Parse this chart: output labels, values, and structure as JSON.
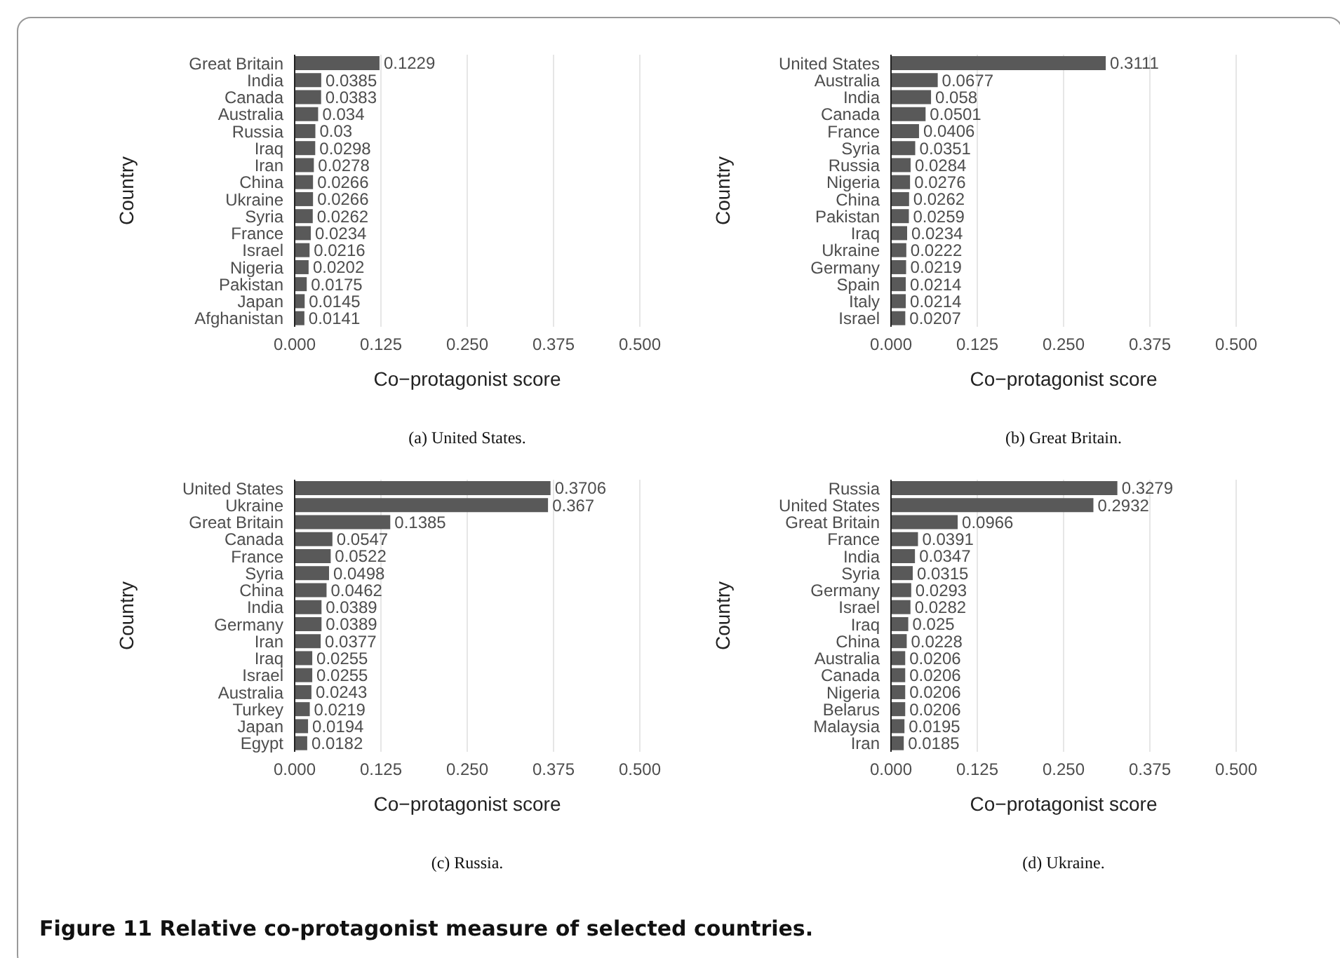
{
  "chart_data": [
    {
      "type": "bar",
      "orientation": "horizontal",
      "title": "(a) United States.",
      "xlabel": "Co−protagonist score",
      "ylabel": "Country",
      "categories": [
        "Great Britain",
        "India",
        "Canada",
        "Australia",
        "Russia",
        "Iraq",
        "Iran",
        "China",
        "Ukraine",
        "Syria",
        "France",
        "Israel",
        "Nigeria",
        "Pakistan",
        "Japan",
        "Afghanistan"
      ],
      "values": [
        0.1229,
        0.0385,
        0.0383,
        0.034,
        0.03,
        0.0298,
        0.0278,
        0.0266,
        0.0266,
        0.0262,
        0.0234,
        0.0216,
        0.0202,
        0.0175,
        0.0145,
        0.0141
      ],
      "color": "#595959",
      "xlim": [
        0,
        0.5
      ],
      "xticks": [
        {
          "value": 0,
          "label": "0.000"
        },
        {
          "value": 0.125,
          "label": "0.125"
        },
        {
          "value": 0.25,
          "label": "0.250"
        },
        {
          "value": 0.375,
          "label": "0.375"
        },
        {
          "value": 0.5,
          "label": "0.500"
        }
      ],
      "grid": "x",
      "data_labels": true
    },
    {
      "type": "bar",
      "orientation": "horizontal",
      "title": "(b) Great Britain.",
      "xlabel": "Co−protagonist score",
      "ylabel": "Country",
      "categories": [
        "United States",
        "Australia",
        "India",
        "Canada",
        "France",
        "Syria",
        "Russia",
        "Nigeria",
        "China",
        "Pakistan",
        "Iraq",
        "Ukraine",
        "Germany",
        "Spain",
        "Italy",
        "Israel"
      ],
      "values": [
        0.3111,
        0.0677,
        0.058,
        0.0501,
        0.0406,
        0.0351,
        0.0284,
        0.0276,
        0.0262,
        0.0259,
        0.0234,
        0.0222,
        0.0219,
        0.0214,
        0.0214,
        0.0207
      ],
      "color": "#595959",
      "xlim": [
        0,
        0.5
      ],
      "xticks": [
        {
          "value": 0,
          "label": "0.000"
        },
        {
          "value": 0.125,
          "label": "0.125"
        },
        {
          "value": 0.25,
          "label": "0.250"
        },
        {
          "value": 0.375,
          "label": "0.375"
        },
        {
          "value": 0.5,
          "label": "0.500"
        }
      ],
      "grid": "x",
      "data_labels": true
    },
    {
      "type": "bar",
      "orientation": "horizontal",
      "title": "(c) Russia.",
      "xlabel": "Co−protagonist score",
      "ylabel": "Country",
      "categories": [
        "United States",
        "Ukraine",
        "Great Britain",
        "Canada",
        "France",
        "Syria",
        "China",
        "India",
        "Germany",
        "Iran",
        "Iraq",
        "Israel",
        "Australia",
        "Turkey",
        "Japan",
        "Egypt"
      ],
      "values": [
        0.3706,
        0.367,
        0.1385,
        0.0547,
        0.0522,
        0.0498,
        0.0462,
        0.0389,
        0.0389,
        0.0377,
        0.0255,
        0.0255,
        0.0243,
        0.0219,
        0.0194,
        0.0182
      ],
      "color": "#595959",
      "xlim": [
        0,
        0.5
      ],
      "xticks": [
        {
          "value": 0,
          "label": "0.000"
        },
        {
          "value": 0.125,
          "label": "0.125"
        },
        {
          "value": 0.25,
          "label": "0.250"
        },
        {
          "value": 0.375,
          "label": "0.375"
        },
        {
          "value": 0.5,
          "label": "0.500"
        }
      ],
      "grid": "x",
      "data_labels": true
    },
    {
      "type": "bar",
      "orientation": "horizontal",
      "title": "(d) Ukraine.",
      "xlabel": "Co−protagonist score",
      "ylabel": "Country",
      "categories": [
        "Russia",
        "United States",
        "Great Britain",
        "France",
        "India",
        "Syria",
        "Germany",
        "Israel",
        "Iraq",
        "China",
        "Australia",
        "Canada",
        "Nigeria",
        "Belarus",
        "Malaysia",
        "Iran"
      ],
      "values": [
        0.3279,
        0.2932,
        0.0966,
        0.0391,
        0.0347,
        0.0315,
        0.0293,
        0.0282,
        0.025,
        0.0228,
        0.0206,
        0.0206,
        0.0206,
        0.0206,
        0.0195,
        0.0185
      ],
      "color": "#595959",
      "xlim": [
        0,
        0.5
      ],
      "xticks": [
        {
          "value": 0,
          "label": "0.000"
        },
        {
          "value": 0.125,
          "label": "0.125"
        },
        {
          "value": 0.25,
          "label": "0.250"
        },
        {
          "value": 0.375,
          "label": "0.375"
        },
        {
          "value": 0.5,
          "label": "0.500"
        }
      ],
      "grid": "x",
      "data_labels": true,
      "annotations": [
        "Figure 11  Relative co-protagonist measure of selected countries."
      ]
    }
  ]
}
